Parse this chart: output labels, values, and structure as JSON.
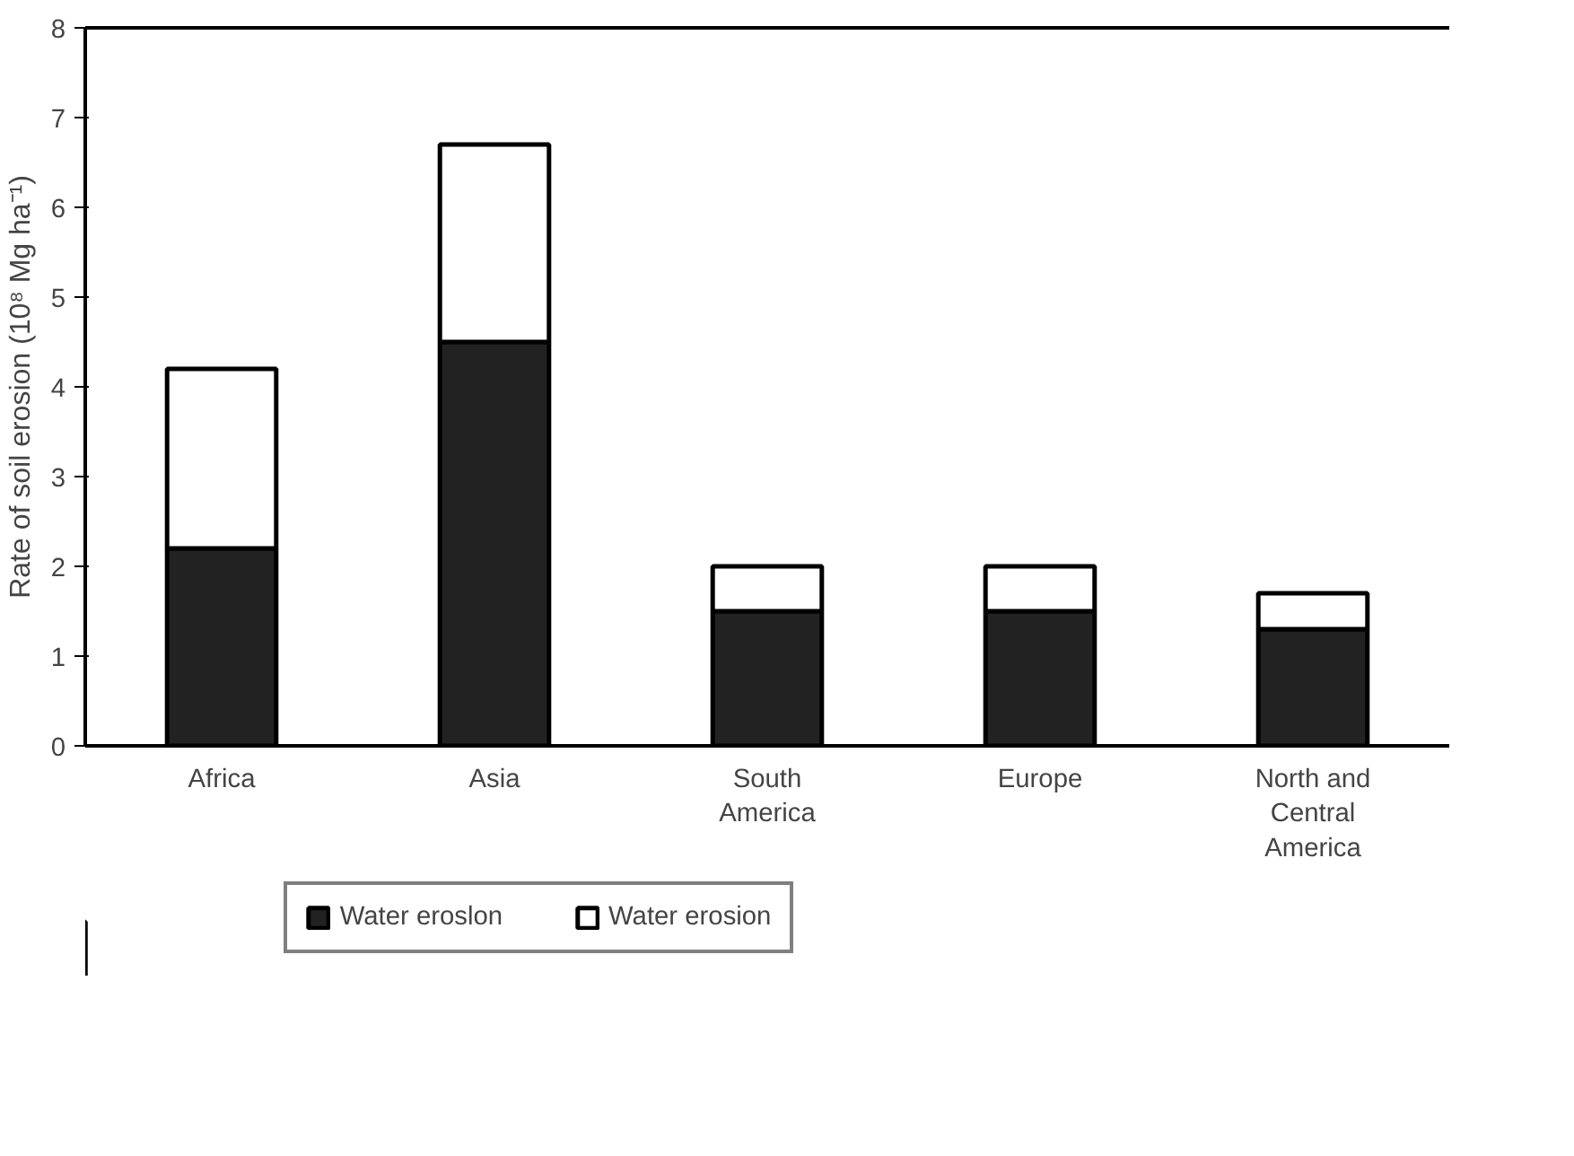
{
  "chart_data": {
    "type": "bar",
    "stacked": true,
    "ylabel": "Rate of soil erosion (10⁸ Mg ha⁻¹)",
    "categories": [
      "Africa",
      "Asia",
      "South\nAmerica",
      "Europe",
      "North and\nCentral\nAmerica"
    ],
    "series": [
      {
        "name": "Water eroslon",
        "color": "#222222",
        "values": [
          2.2,
          4.5,
          1.5,
          1.5,
          1.3
        ]
      },
      {
        "name": "Water erosion",
        "color": "#ffffff",
        "values": [
          2.0,
          2.2,
          0.5,
          0.5,
          0.4
        ]
      }
    ],
    "ylim": [
      0,
      8
    ],
    "yticks": [
      0,
      1,
      2,
      3,
      4,
      5,
      6,
      7,
      8
    ],
    "grid": false,
    "legend": "bottom"
  }
}
